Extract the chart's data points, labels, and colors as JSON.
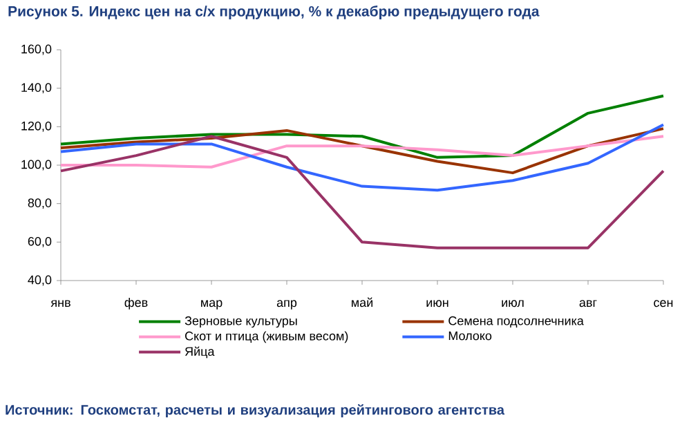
{
  "chart_data": {
    "type": "line",
    "title": "Рисунок 5. Индекс цен на с/х продукцию, % к декабрю предыдущего года",
    "categories": [
      "янв",
      "фев",
      "мар",
      "апр",
      "май",
      "июн",
      "июл",
      "авг",
      "сен"
    ],
    "series": [
      {
        "name": "Зерновые культуры",
        "color": "#008000",
        "values": [
          111,
          114,
          116,
          116,
          115,
          104,
          105,
          127,
          136
        ]
      },
      {
        "name": "Семена подсолнечника",
        "color": "#993300",
        "values": [
          109,
          112,
          114,
          118,
          110,
          102,
          96,
          110,
          119
        ]
      },
      {
        "name": "Скот и птица (живым весом)",
        "color": "#ff99cc",
        "values": [
          100,
          100,
          99,
          110,
          110,
          108,
          105,
          110,
          115
        ]
      },
      {
        "name": "Молоко",
        "color": "#3366ff",
        "values": [
          107,
          111,
          111,
          99,
          89,
          87,
          92,
          101,
          121
        ]
      },
      {
        "name": "Яйца",
        "color": "#993366",
        "values": [
          97,
          105,
          115,
          104,
          60,
          57,
          57,
          57,
          97
        ]
      }
    ],
    "ylim": [
      40,
      160
    ],
    "yticks": [
      {
        "value": 40,
        "label": "40,0"
      },
      {
        "value": 60,
        "label": "60,0"
      },
      {
        "value": 80,
        "label": "80,0"
      },
      {
        "value": 100,
        "label": "100,0"
      },
      {
        "value": 120,
        "label": "120,0"
      },
      {
        "value": 140,
        "label": "140,0"
      },
      {
        "value": 160,
        "label": "160,0"
      }
    ],
    "legend": "bottom",
    "marker": "none",
    "line_style": "solid",
    "annotations": [
      "Источник: Госкомстат, расчеты и визуализация рейтингового агентства"
    ]
  }
}
